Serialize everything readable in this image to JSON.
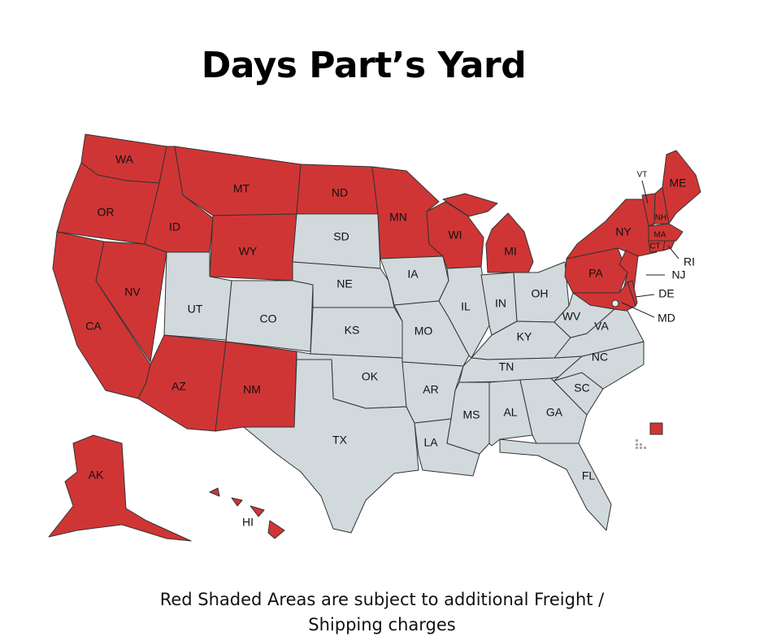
{
  "title": "Days Part’s Yard",
  "caption_line1": "Red Shaded Areas are subject to additional Freight /",
  "caption_line2": "Shipping charges",
  "colors": {
    "shaded": "#d03535",
    "unshaded": "#d1d9dd",
    "border": "#333333"
  },
  "states": [
    {
      "code": "WA",
      "label": "WA",
      "shaded": true
    },
    {
      "code": "OR",
      "label": "OR",
      "shaded": true
    },
    {
      "code": "CA",
      "label": "CA",
      "shaded": true
    },
    {
      "code": "NV",
      "label": "NV",
      "shaded": true
    },
    {
      "code": "ID",
      "label": "ID",
      "shaded": true
    },
    {
      "code": "MT",
      "label": "MT",
      "shaded": true
    },
    {
      "code": "WY",
      "label": "WY",
      "shaded": true
    },
    {
      "code": "UT",
      "label": "UT",
      "shaded": false
    },
    {
      "code": "CO",
      "label": "CO",
      "shaded": false
    },
    {
      "code": "AZ",
      "label": "AZ",
      "shaded": true
    },
    {
      "code": "NM",
      "label": "NM",
      "shaded": true
    },
    {
      "code": "ND",
      "label": "ND",
      "shaded": true
    },
    {
      "code": "SD",
      "label": "SD",
      "shaded": false
    },
    {
      "code": "NE",
      "label": "NE",
      "shaded": false
    },
    {
      "code": "KS",
      "label": "KS",
      "shaded": false
    },
    {
      "code": "OK",
      "label": "OK",
      "shaded": false
    },
    {
      "code": "TX",
      "label": "TX",
      "shaded": false
    },
    {
      "code": "MN",
      "label": "MN",
      "shaded": true
    },
    {
      "code": "IA",
      "label": "IA",
      "shaded": false
    },
    {
      "code": "MO",
      "label": "MO",
      "shaded": false
    },
    {
      "code": "AR",
      "label": "AR",
      "shaded": false
    },
    {
      "code": "LA",
      "label": "LA",
      "shaded": false
    },
    {
      "code": "WI",
      "label": "WI",
      "shaded": true
    },
    {
      "code": "IL",
      "label": "IL",
      "shaded": false
    },
    {
      "code": "MI",
      "label": "MI",
      "shaded": true
    },
    {
      "code": "IN",
      "label": "IN",
      "shaded": false
    },
    {
      "code": "OH",
      "label": "OH",
      "shaded": false
    },
    {
      "code": "KY",
      "label": "KY",
      "shaded": false
    },
    {
      "code": "TN",
      "label": "TN",
      "shaded": false
    },
    {
      "code": "MS",
      "label": "MS",
      "shaded": false
    },
    {
      "code": "AL",
      "label": "AL",
      "shaded": false
    },
    {
      "code": "GA",
      "label": "GA",
      "shaded": false
    },
    {
      "code": "FL",
      "label": "FL",
      "shaded": false
    },
    {
      "code": "SC",
      "label": "SC",
      "shaded": false
    },
    {
      "code": "NC",
      "label": "NC",
      "shaded": false
    },
    {
      "code": "VA",
      "label": "VA",
      "shaded": false
    },
    {
      "code": "WV",
      "label": "WV",
      "shaded": false
    },
    {
      "code": "PA",
      "label": "PA",
      "shaded": true
    },
    {
      "code": "NY",
      "label": "NY",
      "shaded": true
    },
    {
      "code": "NJ",
      "label": "NJ",
      "shaded": true
    },
    {
      "code": "DE",
      "label": "DE",
      "shaded": true
    },
    {
      "code": "MD",
      "label": "MD",
      "shaded": true
    },
    {
      "code": "DC",
      "label": "DC",
      "shaded": false
    },
    {
      "code": "VT",
      "label": "VT",
      "shaded": true
    },
    {
      "code": "NH",
      "label": "NH",
      "shaded": true
    },
    {
      "code": "ME",
      "label": "ME",
      "shaded": true
    },
    {
      "code": "MA",
      "label": "MA",
      "shaded": true
    },
    {
      "code": "CT",
      "label": "CT",
      "shaded": true
    },
    {
      "code": "RI",
      "label": "RI",
      "shaded": true
    },
    {
      "code": "AK",
      "label": "AK",
      "shaded": true
    },
    {
      "code": "HI",
      "label": "HI",
      "shaded": true
    },
    {
      "code": "PR",
      "label": "",
      "shaded": true
    }
  ]
}
